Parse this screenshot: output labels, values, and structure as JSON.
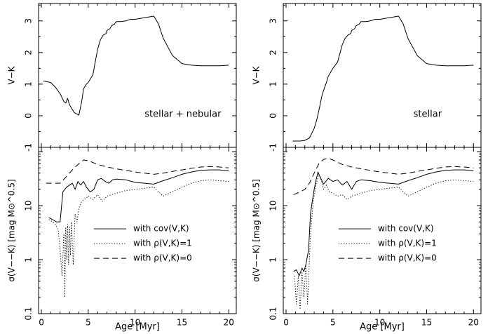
{
  "chart_data": [
    {
      "type": "line",
      "panel": "top-left",
      "annotation": "stellar + nebular",
      "ylabel": "V−K",
      "xlim": [
        -0.3,
        20.8
      ],
      "ylim": [
        -1,
        3.55
      ],
      "yticks": [
        -1,
        0,
        1,
        2,
        3
      ],
      "series": [
        {
          "x": [
            0.2,
            1,
            1.5,
            2,
            2.4,
            2.6,
            2.8,
            3,
            3.2,
            3.5,
            4,
            4.3,
            4.5,
            4.8,
            5,
            5.5,
            6,
            6.3,
            6.6,
            6.9,
            7,
            7.3,
            7.5,
            7.8,
            8,
            8.5,
            9,
            9.5,
            10,
            11,
            12,
            12.5,
            13,
            14,
            15,
            16,
            17,
            18,
            19,
            20
          ],
          "y": [
            1.1,
            1.05,
            0.9,
            0.7,
            0.45,
            0.4,
            0.55,
            0.35,
            0.25,
            0.1,
            0.02,
            0.45,
            0.85,
            1.0,
            1.05,
            1.3,
            2.1,
            2.4,
            2.55,
            2.6,
            2.7,
            2.75,
            2.85,
            2.9,
            2.98,
            2.98,
            3.0,
            3.05,
            3.05,
            3.1,
            3.15,
            2.9,
            2.45,
            1.9,
            1.65,
            1.6,
            1.58,
            1.58,
            1.58,
            1.6
          ]
        }
      ]
    },
    {
      "type": "line",
      "panel": "top-right",
      "annotation": "stellar",
      "ylabel": "V−K",
      "xlim": [
        -0.3,
        20.8
      ],
      "ylim": [
        -1,
        3.55
      ],
      "yticks": [
        -1,
        0,
        1,
        2,
        3
      ],
      "series": [
        {
          "x": [
            0.7,
            1.5,
            2,
            2.5,
            3,
            3.3,
            3.6,
            3.8,
            4,
            4.3,
            4.5,
            5,
            5.5,
            6,
            6.3,
            6.6,
            6.9,
            7,
            7.3,
            7.5,
            7.8,
            8,
            8.5,
            9,
            9.5,
            10,
            11,
            12,
            12.5,
            13,
            14,
            15,
            16,
            17,
            18,
            19,
            20
          ],
          "y": [
            -0.8,
            -0.8,
            -0.78,
            -0.7,
            -0.4,
            -0.1,
            0.3,
            0.6,
            0.8,
            1.05,
            1.25,
            1.5,
            1.7,
            2.25,
            2.45,
            2.55,
            2.6,
            2.7,
            2.75,
            2.85,
            2.9,
            2.98,
            2.98,
            3.0,
            3.05,
            3.05,
            3.1,
            3.15,
            2.9,
            2.45,
            1.9,
            1.65,
            1.6,
            1.58,
            1.58,
            1.58,
            1.6
          ]
        }
      ]
    },
    {
      "type": "line",
      "panel": "bottom-left",
      "ylabel": "σ(V−−K) [mag M⊙^0.5]",
      "xlabel": "Age [Myr]",
      "xlim": [
        -0.3,
        20.8
      ],
      "ylim": [
        0.1,
        120
      ],
      "yscale": "log",
      "yticks": [
        0.1,
        1,
        10
      ],
      "xticks": [
        0,
        5,
        10,
        15,
        20
      ],
      "legend": "lower-right",
      "series": [
        {
          "name": "with cov(V,K)",
          "style": "solid",
          "x": [
            0.8,
            1.2,
            1.6,
            2.0,
            2.3,
            2.5,
            2.7,
            3.0,
            3.3,
            3.6,
            3.9,
            4.2,
            4.5,
            4.8,
            5.2,
            5.6,
            6.0,
            6.4,
            6.8,
            7.2,
            7.6,
            8.0,
            9.0,
            10.0,
            11.0,
            12.0,
            13.0,
            14.0,
            15.0,
            16.0,
            17.0,
            18.0,
            19.0,
            20.0
          ],
          "y": [
            6,
            5.5,
            5,
            5,
            18,
            20,
            22,
            24,
            26,
            20,
            28,
            24,
            28,
            22,
            18,
            20,
            30,
            32,
            28,
            26,
            30,
            31,
            30,
            27,
            26,
            25,
            29,
            33,
            38,
            42,
            45,
            46,
            46,
            44
          ]
        },
        {
          "name": "with ρ(V,K)=1",
          "style": "dotted",
          "x": [
            0.8,
            1.2,
            1.5,
            1.8,
            2.0,
            2.2,
            2.4,
            2.5,
            2.6,
            2.7,
            2.8,
            2.9,
            3.0,
            3.1,
            3.2,
            3.4,
            3.6,
            3.8,
            4.0,
            4.3,
            4.6,
            5.0,
            5.5,
            6.0,
            6.5,
            7.0,
            8.0,
            9.0,
            10.0,
            11.0,
            12.0,
            13.0,
            14.0,
            15.0,
            16.0,
            17.0,
            18.0,
            19.0,
            20.0
          ],
          "y": [
            5.5,
            5.0,
            4.5,
            3.5,
            1.5,
            0.5,
            3.0,
            0.2,
            4.0,
            1.0,
            4.5,
            0.8,
            4.0,
            1.2,
            5.0,
            0.8,
            7.0,
            5.0,
            9.0,
            12.0,
            13.0,
            15.0,
            13.0,
            16.0,
            12.0,
            15.0,
            17.0,
            19.0,
            20.0,
            21.0,
            22.0,
            15.0,
            18.0,
            22.0,
            26.0,
            29.0,
            30.0,
            29.0,
            28.0
          ]
        },
        {
          "name": "with ρ(V,K)=0",
          "style": "dashed",
          "x": [
            0.5,
            1.0,
            2.0,
            2.5,
            3.0,
            3.5,
            4.0,
            4.5,
            5.0,
            6.0,
            7.0,
            8.0,
            9.0,
            10.0,
            11.0,
            12.0,
            13.0,
            14.0,
            15.0,
            16.0,
            17.0,
            18.0,
            19.0,
            20.0
          ],
          "y": [
            26,
            26,
            26,
            32,
            40,
            50,
            60,
            70,
            68,
            58,
            52,
            48,
            45,
            42,
            40,
            38,
            40,
            43,
            46,
            49,
            52,
            53,
            52,
            50
          ]
        }
      ]
    },
    {
      "type": "line",
      "panel": "bottom-right",
      "ylabel": "σ(V−−K) [mag M⊙^0.5]",
      "xlabel": "Age [Myr]",
      "xlim": [
        -0.3,
        20.8
      ],
      "ylim": [
        0.1,
        120
      ],
      "yscale": "log",
      "yticks": [
        0.1,
        1,
        10
      ],
      "xticks": [
        0,
        5,
        10,
        15,
        20
      ],
      "legend": "lower-right",
      "series": [
        {
          "name": "with cov(V,K)",
          "style": "solid",
          "x": [
            0.8,
            1.1,
            1.4,
            1.7,
            1.9,
            2.1,
            2.4,
            2.6,
            2.8,
            3.0,
            3.2,
            3.4,
            3.6,
            4.0,
            4.5,
            5.0,
            5.5,
            6.0,
            6.5,
            7.0,
            7.5,
            8.0,
            9.0,
            10.0,
            11.0,
            12.0,
            13.0,
            14.0,
            15.0,
            16.0,
            17.0,
            18.0,
            19.0,
            20.0
          ],
          "y": [
            0.6,
            0.65,
            0.5,
            0.7,
            0.6,
            0.8,
            1.5,
            7.0,
            12.0,
            20.0,
            30.0,
            42.0,
            35.0,
            25.0,
            32.0,
            28.0,
            30.0,
            24.0,
            28.0,
            20.0,
            28.0,
            30.0,
            29.0,
            27.0,
            26.0,
            25.0,
            29.0,
            33.0,
            38.0,
            42.0,
            45.0,
            46.0,
            46.0,
            44.0
          ]
        },
        {
          "name": "with ρ(V,K)=1",
          "style": "dotted",
          "x": [
            0.9,
            1.1,
            1.3,
            1.5,
            1.7,
            1.9,
            2.1,
            2.3,
            2.6,
            2.9,
            3.2,
            3.5,
            3.8,
            4.0,
            4.3,
            4.6,
            5.0,
            5.5,
            6.0,
            6.5,
            7.0,
            8.0,
            9.0,
            10.0,
            11.0,
            12.0,
            13.0,
            14.0,
            15.0,
            16.0,
            17.0,
            18.0,
            19.0,
            20.0
          ],
          "y": [
            0.5,
            0.15,
            0.5,
            0.12,
            0.6,
            0.2,
            0.8,
            0.15,
            3.0,
            12.0,
            25.0,
            38.0,
            28.0,
            20.0,
            24.0,
            18.0,
            17.0,
            15.0,
            16.0,
            13.0,
            15.0,
            17.0,
            19.0,
            20.0,
            21.0,
            22.0,
            15.0,
            18.0,
            22.0,
            26.0,
            29.0,
            30.0,
            29.0,
            28.0
          ]
        },
        {
          "name": "with ρ(V,K)=0",
          "style": "dashed",
          "x": [
            0.8,
            1.5,
            2.0,
            2.5,
            3.0,
            3.5,
            4.0,
            4.5,
            5.0,
            6.0,
            7.0,
            8.0,
            9.0,
            10.0,
            11.0,
            12.0,
            13.0,
            14.0,
            15.0,
            16.0,
            17.0,
            18.0,
            19.0,
            20.0
          ],
          "y": [
            16,
            18,
            20,
            26,
            40,
            60,
            72,
            75,
            70,
            58,
            52,
            48,
            45,
            42,
            40,
            38,
            40,
            43,
            46,
            49,
            52,
            53,
            52,
            50
          ]
        }
      ]
    }
  ]
}
